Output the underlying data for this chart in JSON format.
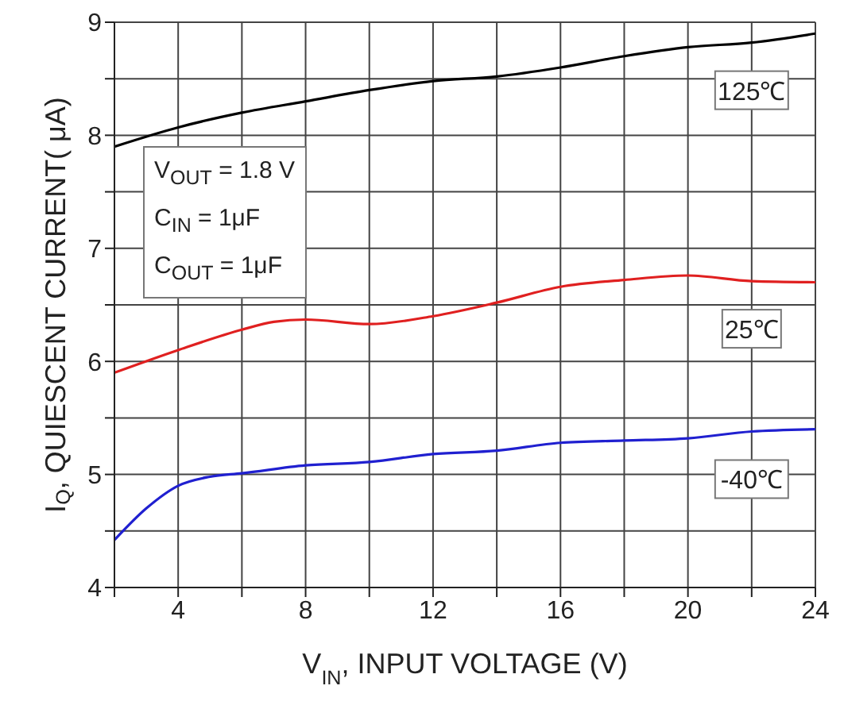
{
  "chart_data": {
    "type": "line",
    "xlabel": "V$_{IN}$, INPUT VOLTAGE (V)",
    "ylabel": "I$_{Q}$, QUIESCENT CURRENT( μA)",
    "annotations": [
      "V$_{OUT}$ = 1.8 V",
      "C$_{IN}$ = 1μF",
      "C$_{OUT}$ = 1μF"
    ],
    "xlim": [
      2,
      24
    ],
    "xticks": [
      {
        "value": 2,
        "label": null
      },
      4,
      {
        "value": 6,
        "label": null
      },
      8,
      {
        "value": 10,
        "label": null
      },
      12,
      {
        "value": 14,
        "label": null
      },
      16,
      {
        "value": 18,
        "label": null
      },
      20,
      {
        "value": 22,
        "label": null
      },
      24
    ],
    "ylim": [
      4,
      9
    ],
    "yticks": [
      4,
      {
        "value": 4.5,
        "label": null
      },
      5,
      {
        "value": 5.5,
        "label": null
      },
      6,
      {
        "value": 6.5,
        "label": null
      },
      7,
      {
        "value": 7.5,
        "label": null
      },
      8,
      {
        "value": 8.5,
        "label": null
      },
      9
    ],
    "grid": true,
    "series": [
      {
        "name": "125℃",
        "color": "#000000",
        "x": [
          2,
          4,
          6,
          8,
          10,
          12,
          14,
          16,
          18,
          20,
          22,
          24
        ],
        "values": [
          7.9,
          8.07,
          8.2,
          8.3,
          8.4,
          8.48,
          8.52,
          8.6,
          8.7,
          8.78,
          8.82,
          8.9
        ]
      },
      {
        "name": "25℃",
        "color": "#e02020",
        "x": [
          2,
          4,
          6,
          7,
          8,
          10,
          12,
          14,
          16,
          18,
          20,
          22,
          24
        ],
        "values": [
          5.9,
          6.1,
          6.28,
          6.35,
          6.37,
          6.33,
          6.4,
          6.52,
          6.66,
          6.72,
          6.76,
          6.71,
          6.7
        ]
      },
      {
        "name": "-40℃",
        "color": "#2020d0",
        "x": [
          2,
          3,
          4,
          5,
          6,
          8,
          10,
          12,
          14,
          16,
          18,
          20,
          22,
          24
        ],
        "values": [
          4.42,
          4.7,
          4.9,
          4.98,
          5.01,
          5.08,
          5.11,
          5.18,
          5.21,
          5.28,
          5.3,
          5.32,
          5.38,
          5.4
        ]
      }
    ]
  }
}
